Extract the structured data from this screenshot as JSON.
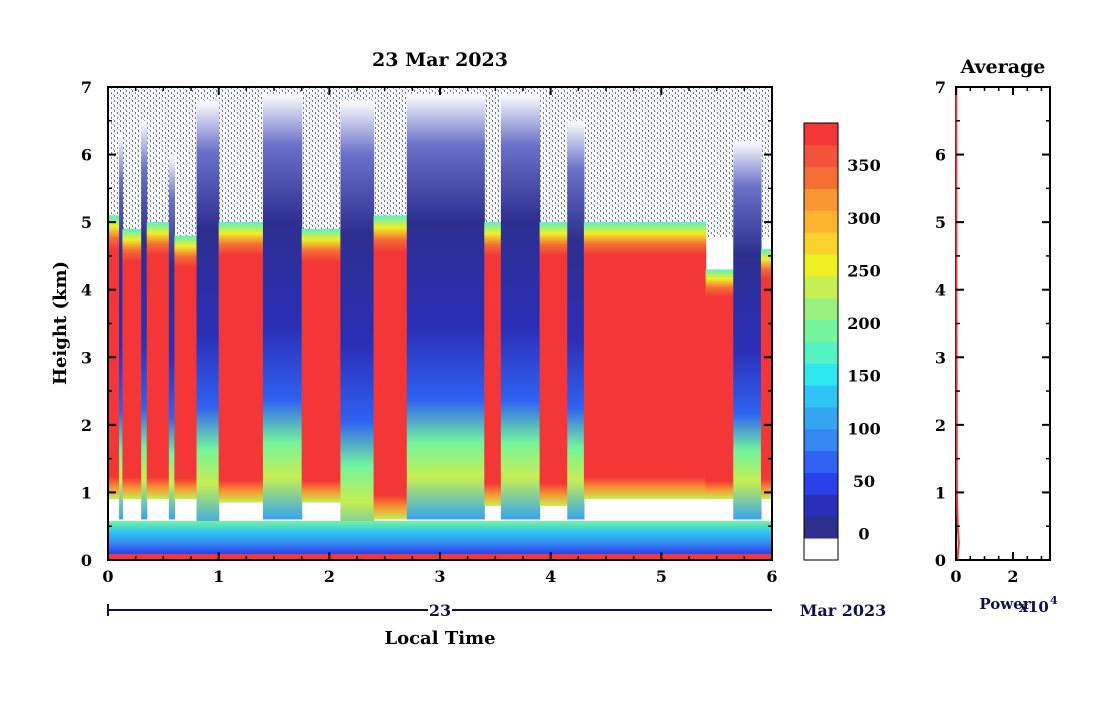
{
  "chart_data": [
    {
      "type": "heatmap",
      "title": "23 Mar 2023",
      "ylabel": "Height (km)",
      "xlabel": "Local Time",
      "xlim": [
        0,
        6
      ],
      "ylim": [
        0,
        7
      ],
      "x_ticks": [
        "0",
        "1",
        "2",
        "3",
        "4",
        "5",
        "6"
      ],
      "y_ticks": [
        "0",
        "1",
        "2",
        "3",
        "4",
        "5",
        "6",
        "7"
      ],
      "date_axis": {
        "day": "23",
        "month_year": "Mar 2023"
      },
      "colorbar": {
        "ticks": [
          "0",
          "50",
          "100",
          "150",
          "200",
          "250",
          "300",
          "350"
        ],
        "range": [
          -25,
          390
        ],
        "colors": [
          "#ffffff",
          "#2d2f8f",
          "#2a2fb8",
          "#2a40e8",
          "#2f62f2",
          "#3585f3",
          "#35a5f0",
          "#2ec4f4",
          "#2de8f0",
          "#55f2c4",
          "#74f49c",
          "#9af07c",
          "#c6ef52",
          "#eff024",
          "#fcd12c",
          "#fbb42c",
          "#f79632",
          "#f56e33",
          "#f3533a",
          "#f43636"
        ]
      },
      "columns": [
        {
          "x0": 0.0,
          "x1": 0.1,
          "top": 5.1,
          "base": 0.9,
          "clear": false
        },
        {
          "x0": 0.1,
          "x1": 0.13,
          "top": 6.3,
          "base": 0.6,
          "clear": true
        },
        {
          "x0": 0.13,
          "x1": 0.3,
          "top": 4.9,
          "base": 0.9,
          "clear": false
        },
        {
          "x0": 0.3,
          "x1": 0.35,
          "top": 6.5,
          "base": 0.6,
          "clear": true
        },
        {
          "x0": 0.35,
          "x1": 0.55,
          "top": 5.0,
          "base": 0.9,
          "clear": false
        },
        {
          "x0": 0.55,
          "x1": 0.6,
          "top": 6.0,
          "base": 0.6,
          "clear": true
        },
        {
          "x0": 0.6,
          "x1": 0.8,
          "top": 4.8,
          "base": 0.9,
          "clear": false
        },
        {
          "x0": 0.8,
          "x1": 1.0,
          "top": 6.8,
          "base": 0.5,
          "clear": true
        },
        {
          "x0": 1.0,
          "x1": 1.4,
          "top": 5.0,
          "base": 0.85,
          "clear": false
        },
        {
          "x0": 1.4,
          "x1": 1.75,
          "top": 6.9,
          "base": 0.6,
          "clear": true
        },
        {
          "x0": 1.75,
          "x1": 2.1,
          "top": 4.9,
          "base": 0.85,
          "clear": false
        },
        {
          "x0": 2.1,
          "x1": 2.4,
          "top": 6.8,
          "base": 0.2,
          "clear": true
        },
        {
          "x0": 2.4,
          "x1": 2.7,
          "top": 5.1,
          "base": 0.6,
          "clear": false
        },
        {
          "x0": 2.7,
          "x1": 3.4,
          "top": 6.9,
          "base": 0.6,
          "clear": true
        },
        {
          "x0": 3.4,
          "x1": 3.55,
          "top": 5.0,
          "base": 0.8,
          "clear": false
        },
        {
          "x0": 3.55,
          "x1": 3.9,
          "top": 6.9,
          "base": 0.6,
          "clear": true
        },
        {
          "x0": 3.9,
          "x1": 4.15,
          "top": 5.0,
          "base": 0.8,
          "clear": false
        },
        {
          "x0": 4.15,
          "x1": 4.3,
          "top": 6.5,
          "base": 0.6,
          "clear": true
        },
        {
          "x0": 4.3,
          "x1": 5.4,
          "top": 5.0,
          "base": 0.9,
          "clear": false
        },
        {
          "x0": 5.4,
          "x1": 5.65,
          "top": 4.3,
          "base": 0.9,
          "clear": false
        },
        {
          "x0": 5.65,
          "x1": 5.9,
          "top": 6.2,
          "base": 0.6,
          "clear": true
        },
        {
          "x0": 5.9,
          "x1": 6.0,
          "top": 4.6,
          "base": 0.9,
          "clear": false
        }
      ]
    },
    {
      "type": "line",
      "title": "Average",
      "xlabel": "Power",
      "x_multiplier": "x10",
      "x_multiplier_exp": "4",
      "xlim": [
        0,
        3.3
      ],
      "ylim": [
        0,
        7
      ],
      "x_ticks": [
        "0",
        "2"
      ],
      "y_ticks": [
        "0",
        "1",
        "2",
        "3",
        "4",
        "5",
        "6",
        "7"
      ],
      "series": [
        {
          "x": [
            0.05,
            0.1,
            0.06,
            0.03,
            0.02,
            0.01
          ],
          "y": [
            0.0,
            0.25,
            0.5,
            1.0,
            3.0,
            7.0
          ]
        }
      ]
    }
  ]
}
